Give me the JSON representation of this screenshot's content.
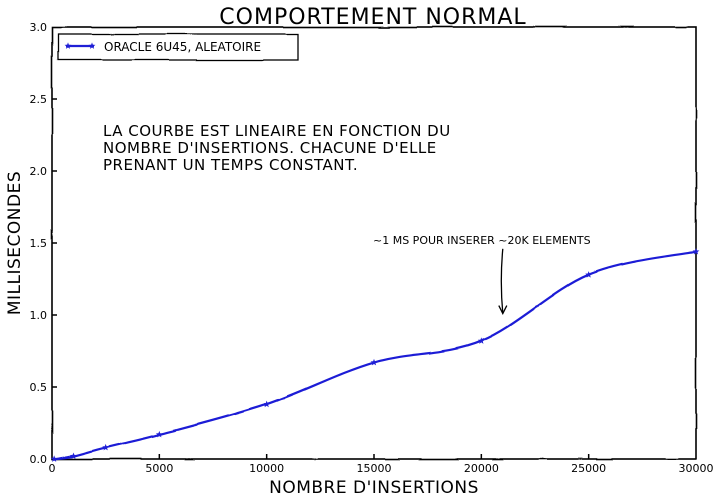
{
  "chart_data": {
    "type": "line",
    "title": "COMPORTEMENT NORMAL",
    "xlabel": "NOMBRE D'INSERTIONS",
    "ylabel": "MILLISECONDES",
    "xlim": [
      0,
      30000
    ],
    "ylim": [
      0,
      3.0
    ],
    "xticks": [
      0,
      5000,
      10000,
      15000,
      20000,
      25000,
      30000
    ],
    "yticks": [
      0.0,
      0.5,
      1.0,
      1.5,
      2.0,
      2.5,
      3.0
    ],
    "xtick_labels": [
      "0",
      "5000",
      "10000",
      "15000",
      "20000",
      "25000",
      "30000"
    ],
    "ytick_labels": [
      "0.0",
      "0.5",
      "1.0",
      "1.5",
      "2.0",
      "2.5",
      "3.0"
    ],
    "grid": false,
    "legend_position": "top-left",
    "series": [
      {
        "name": "ORACLE 6U45, ALEATOIRE",
        "color": "#1f1fd6",
        "marker": "star",
        "x": [
          100,
          1000,
          2500,
          5000,
          10000,
          15000,
          20000,
          25000,
          30000
        ],
        "y": [
          0.0,
          0.02,
          0.08,
          0.17,
          0.38,
          0.67,
          0.82,
          1.28,
          1.44
        ]
      }
    ],
    "annotations": [
      {
        "text": "LA COURBE EST LINEAIRE EN FONCTION DU",
        "text2": "NOMBRE D'INSERTIONS. CHACUNE D'ELLE",
        "text3": "PRENANT UN TEMPS CONSTANT."
      },
      {
        "text": "~1 MS POUR INSERER ~20K ELEMENTS",
        "arrow_from": [
          21000,
          1.46
        ],
        "arrow_to": [
          21000,
          1.01
        ]
      }
    ]
  }
}
